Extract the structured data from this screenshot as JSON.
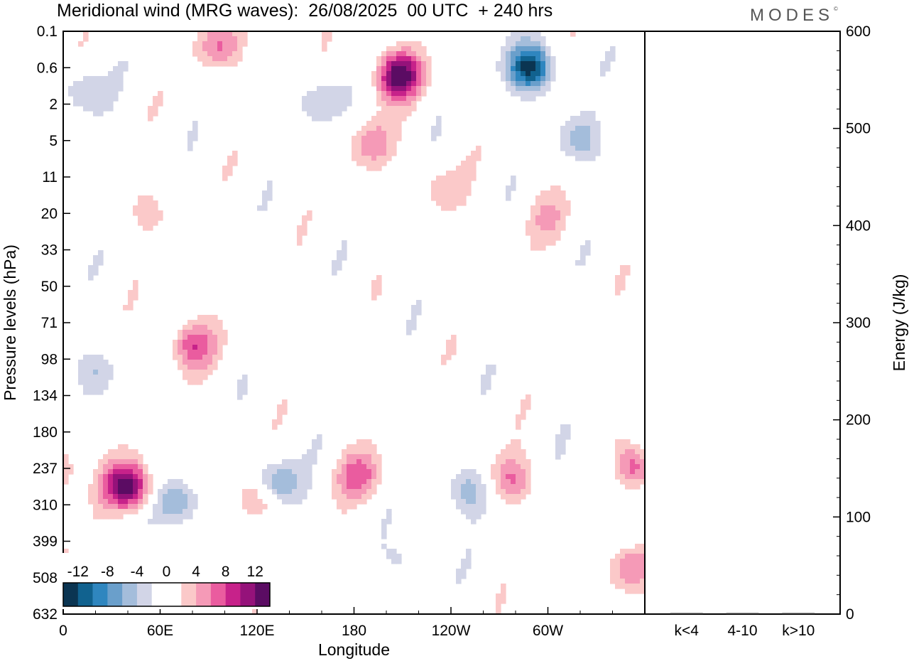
{
  "header": {
    "title": "Meridional wind (MRG waves):  26/08/2025  00 UTC  + 240 hrs",
    "logo": "MODES"
  },
  "chart_data": [
    {
      "type": "heatmap",
      "title": "Meridional wind (MRG waves):  26/08/2025  00 UTC  + 240 hrs",
      "xlabel": "Longitude",
      "ylabel": "Pressure levels (hPa)",
      "x_tick_labels": [
        "0",
        "60E",
        "120E",
        "180",
        "120W",
        "60W"
      ],
      "y_tick_labels": [
        "0.1",
        "0.6",
        "2",
        "5",
        "11",
        "20",
        "33",
        "50",
        "71",
        "98",
        "134",
        "180",
        "237",
        "310",
        "399",
        "508",
        "632"
      ],
      "colorbar": {
        "levels": [
          "-12",
          "-8",
          "-4",
          "0",
          "4",
          "8",
          "12"
        ],
        "colors": [
          "#0b3552",
          "#11628f",
          "#2f86bf",
          "#6a9fcb",
          "#a4bddb",
          "#d2d5e7",
          "#ffffff",
          "#ffffff",
          "#fbc9c9",
          "#f59ab7",
          "#ea5c9f",
          "#c7228a",
          "#95127a",
          "#5b0c63"
        ]
      },
      "blobs": [
        {
          "lon": 40,
          "lev": 12.5,
          "v": 13
        },
        {
          "lon": 80,
          "lev": 8.6,
          "v": 7
        },
        {
          "lon": 121,
          "lev": 12.8,
          "v": 5
        },
        {
          "lon": 72,
          "lev": 13,
          "v": -6
        },
        {
          "lon": 20,
          "lev": 9.3,
          "v": -4
        },
        {
          "lon": 131,
          "lev": 12.4,
          "v": -7
        },
        {
          "lon": 183,
          "lev": 12.2,
          "v": 6
        },
        {
          "lon": 213,
          "lev": 14.6,
          "v": -3
        },
        {
          "lon": 250,
          "lev": 12.6,
          "v": -5
        },
        {
          "lon": 278,
          "lev": 12.3,
          "v": 6
        },
        {
          "lon": 332,
          "lev": 12,
          "v": -4
        },
        {
          "lon": 353,
          "lev": 12,
          "v": 8
        },
        {
          "lon": 351,
          "lev": 14.7,
          "v": 6
        },
        {
          "lon": 208,
          "lev": 1.2,
          "v": 13
        },
        {
          "lon": 190,
          "lev": 3.1,
          "v": 5
        },
        {
          "lon": 289,
          "lev": 1.0,
          "v": -13
        },
        {
          "lon": 320,
          "lev": 3.0,
          "v": -5
        },
        {
          "lon": 96,
          "lev": 0.4,
          "v": 6
        },
        {
          "lon": 10,
          "lev": 1.6,
          "v": -4
        },
        {
          "lon": 157,
          "lev": 1.9,
          "v": -4
        },
        {
          "lon": 233,
          "lev": 4.3,
          "v": 3
        },
        {
          "lon": 300,
          "lev": 5.1,
          "v": 3
        },
        {
          "lon": 52,
          "lev": 4.9,
          "v": 3
        }
      ]
    },
    {
      "type": "bar",
      "categories": [
        "k<4",
        "4-10",
        "k>10"
      ],
      "values": [
        0,
        1,
        0
      ],
      "ylabel": "Energy (J/kg)",
      "ylim": [
        0,
        600
      ],
      "y_tick_labels": [
        "0",
        "100",
        "200",
        "300",
        "400",
        "500",
        "600"
      ]
    }
  ]
}
